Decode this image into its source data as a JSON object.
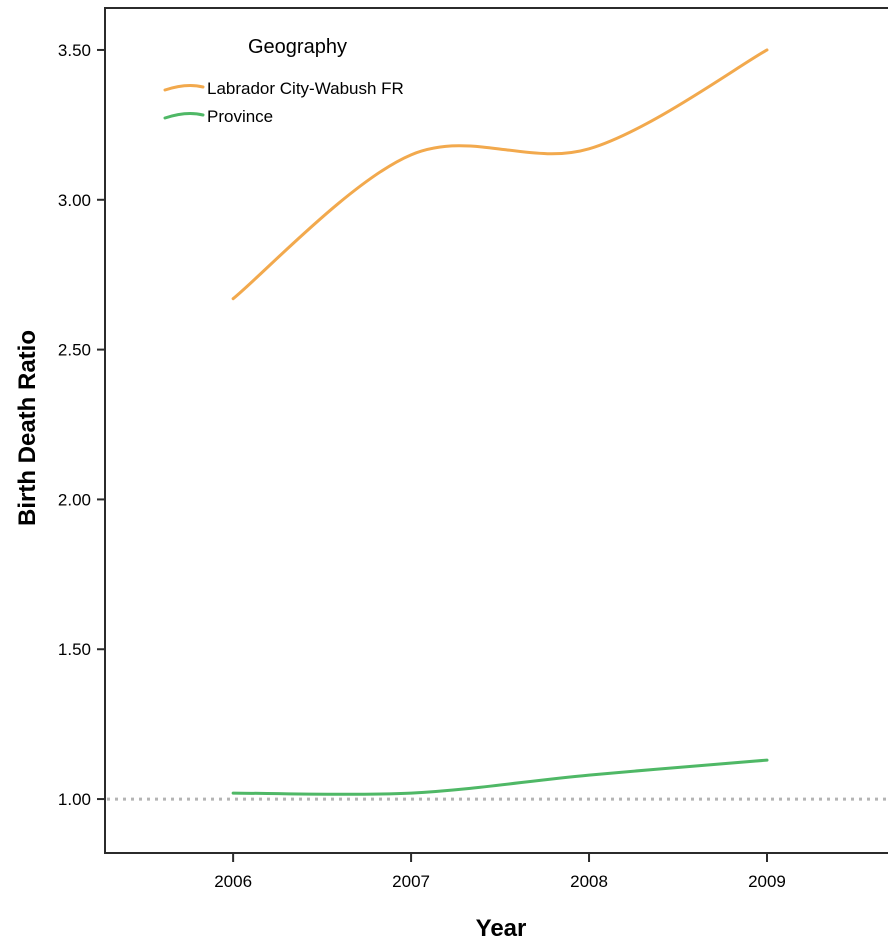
{
  "chart_data": {
    "type": "line",
    "title": "",
    "xlabel": "Year",
    "ylabel": "Birth Death Ratio",
    "x": [
      2006,
      2007,
      2008,
      2009
    ],
    "x_tick_labels": [
      "2006",
      "2007",
      "2008",
      "2009"
    ],
    "xlim": [
      2005.28,
      2009.68
    ],
    "y_ticks": [
      1.0,
      1.5,
      2.0,
      2.5,
      3.0,
      3.5
    ],
    "y_tick_labels": [
      "1.00",
      "1.50",
      "2.00",
      "2.50",
      "3.00",
      "3.50"
    ],
    "ylim": [
      0.82,
      3.64
    ],
    "grid": false,
    "smoothed": true,
    "reference_line": {
      "y": 1.0,
      "style": "dotted",
      "color": "#b4b4b4"
    },
    "legend": {
      "title": "Geography",
      "placement": "top-left"
    },
    "series": [
      {
        "name": "Labrador City-Wabush FR",
        "color": "#f2a94d",
        "values": [
          2.67,
          3.15,
          3.17,
          3.5
        ]
      },
      {
        "name": "Province",
        "color": "#4fb866",
        "values": [
          1.02,
          1.02,
          1.08,
          1.13
        ]
      }
    ]
  }
}
